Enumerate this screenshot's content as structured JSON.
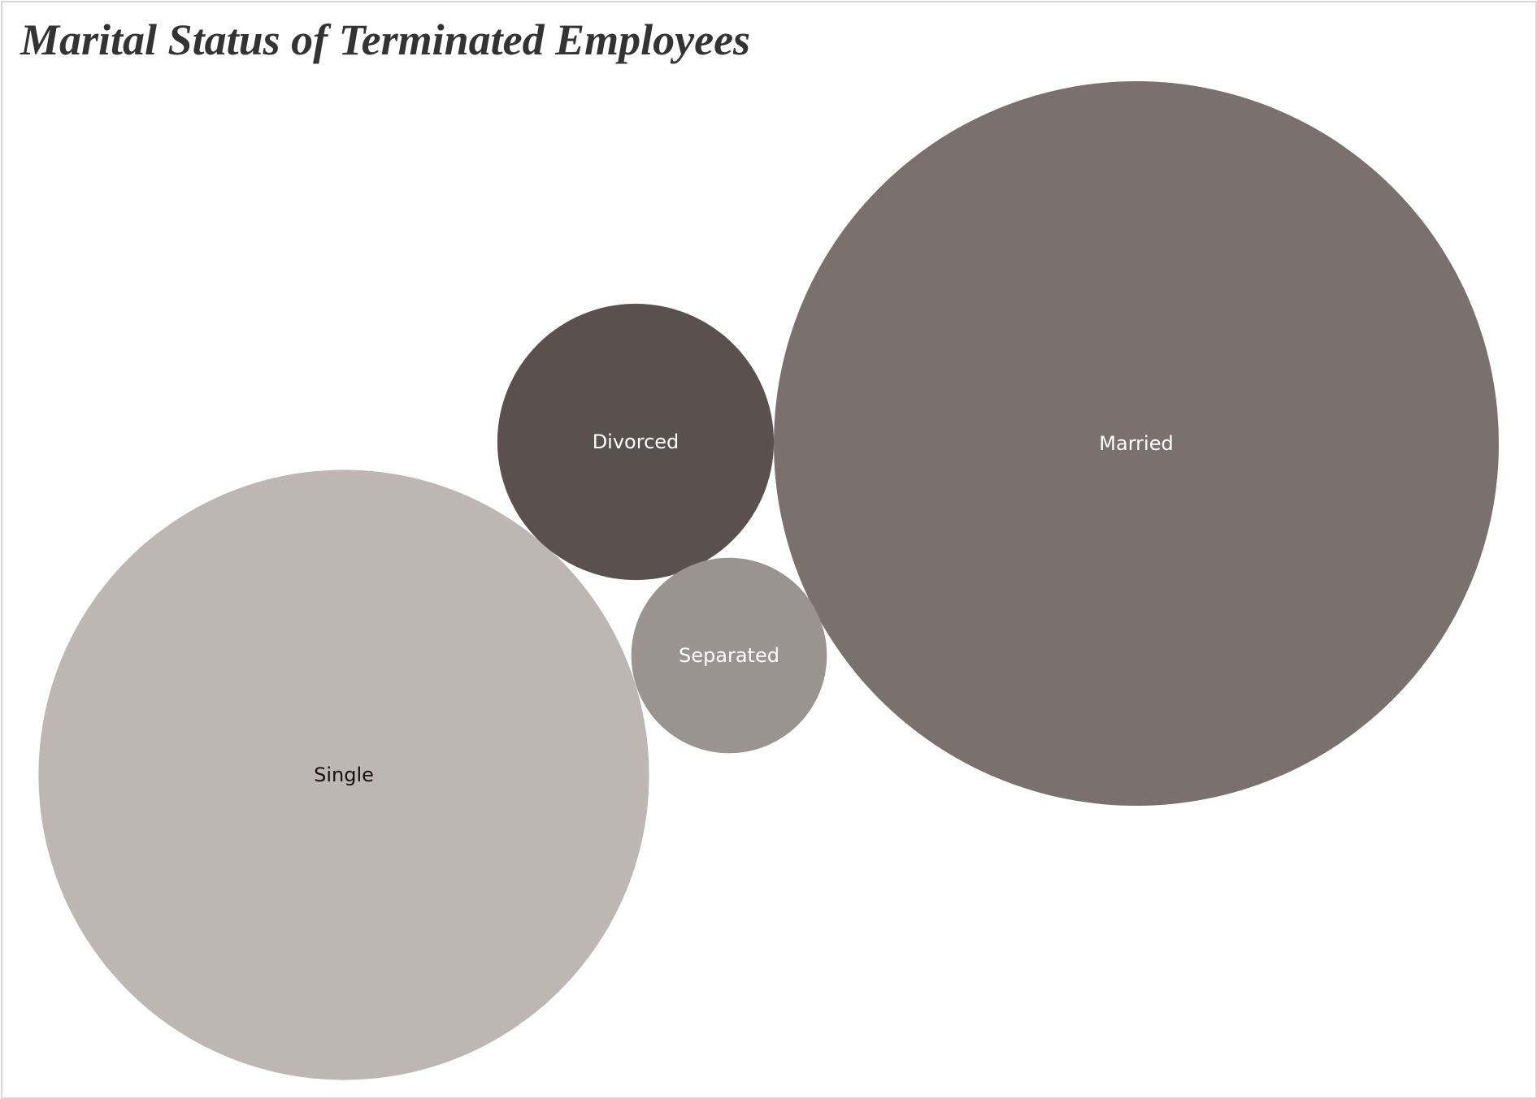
{
  "chart_data": {
    "type": "bubble",
    "title": "Marital Status of Terminated Employees",
    "categories": [
      "Married",
      "Single",
      "Divorced",
      "Separated"
    ],
    "values": [
      55,
      39,
      8,
      4
    ],
    "colors": [
      "#7a706d",
      "#bdb6b2",
      "#5a504e",
      "#9a9390"
    ],
    "label_colors": [
      "#ffffff",
      "#111111",
      "#ffffff",
      "#ffffff"
    ],
    "xlabel": "",
    "ylabel": "",
    "legend": "none",
    "grid": false
  }
}
